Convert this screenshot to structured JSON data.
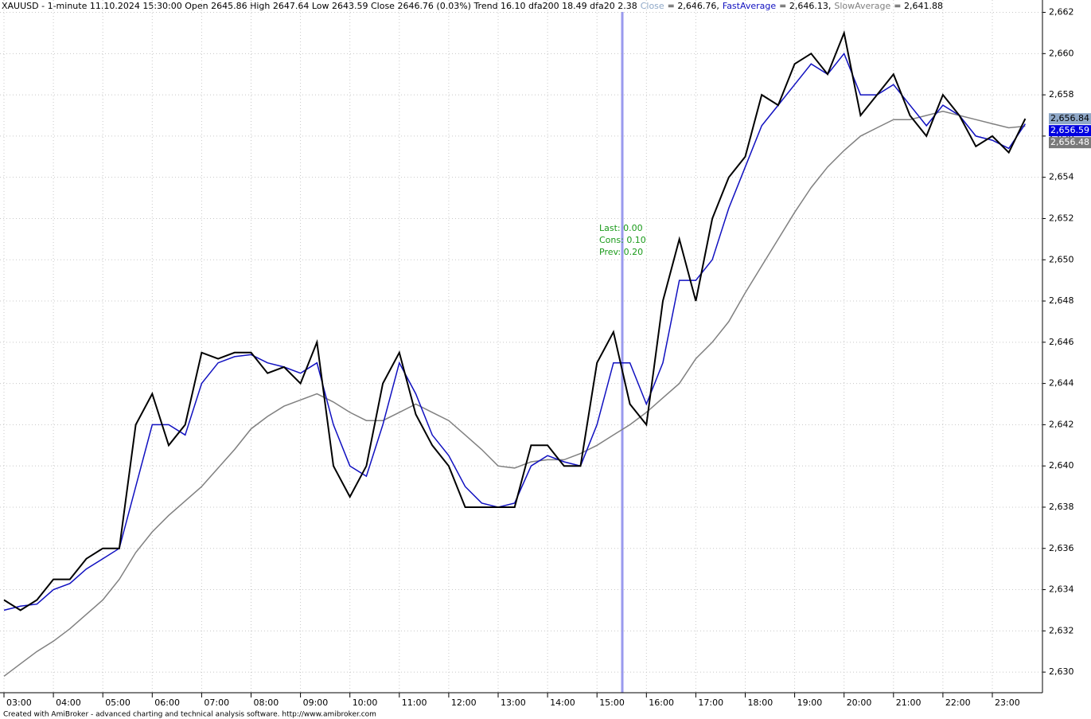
{
  "chart_data": {
    "type": "line",
    "title": "XAUUSD - 1-minute 11.10.2024 15:30:00 Open 2645.86 High 2647.64 Low 2643.59 Close 2646.76 (0.03%) Trend 16.10 dfa200 18.49 dfa20 2.38",
    "footer": "Created with AmiBroker - advanced charting and technical analysis software. http://www.amibroker.com",
    "annotations": [
      "Last: 0.00",
      "Cons: 0.10",
      "Prev: 0.20"
    ],
    "categories": [
      "03:00",
      null,
      null,
      "04:00",
      null,
      null,
      "05:00",
      null,
      null,
      "06:00",
      null,
      null,
      "07:00",
      null,
      null,
      "08:00",
      null,
      null,
      "09:00",
      null,
      null,
      "10:00",
      null,
      null,
      "11:00",
      null,
      null,
      "12:00",
      null,
      null,
      "13:00",
      null,
      null,
      "14:00",
      null,
      null,
      "15:00",
      null,
      null,
      "16:00",
      null,
      null,
      "17:00",
      null,
      null,
      "18:00",
      null,
      null,
      "19:00",
      null,
      null,
      "20:00",
      null,
      null,
      "21:00",
      null,
      null,
      "22:00",
      null,
      null,
      "23:00",
      null,
      null
    ],
    "series": [
      {
        "name": "Close",
        "legend_value": "= 2,646.76,",
        "color": "#000000",
        "label_color": "#8fa8c8",
        "label_text_color": "#000000",
        "values": [
          2633.5,
          2633,
          2633.5,
          2634.5,
          2634.5,
          2635.5,
          2636,
          2636,
          2642,
          2643.5,
          2641,
          2642,
          2645.5,
          2645.2,
          2645.5,
          2645.5,
          2644.5,
          2644.8,
          2644,
          2646,
          2640,
          2638.5,
          2640,
          2644,
          2645.5,
          2642.5,
          2641,
          2640,
          2638,
          2638,
          2638,
          2638,
          2641,
          2641,
          2640,
          2640,
          2645,
          2646.5,
          2643,
          2642,
          2648,
          2651,
          2648,
          2652,
          2654,
          2655,
          2658,
          2657.5,
          2659.5,
          2660,
          2659,
          2661,
          2657,
          2658,
          2659,
          2657,
          2656,
          2658,
          2657,
          2655.5,
          2656,
          2655.2,
          2656.84
        ],
        "value_labels": [
          null,
          null,
          null,
          null,
          null,
          null,
          null,
          null,
          null,
          null,
          null,
          null,
          null,
          null,
          null,
          null,
          null,
          null,
          null,
          null,
          null,
          null,
          null,
          null,
          null,
          null,
          null,
          null,
          null,
          null,
          null,
          null,
          null,
          null,
          null,
          null,
          null,
          null,
          null,
          null,
          null,
          null,
          null,
          null,
          null,
          null,
          null,
          null,
          null,
          null,
          null,
          null,
          null,
          null,
          null,
          null,
          null,
          null,
          null,
          null,
          null,
          null,
          "2,656.84"
        ]
      },
      {
        "name": "FastAverage",
        "legend_value": "= 2,646.13,",
        "color": "#1010c0",
        "label_color": "#0000e0",
        "label_text_color": "#ffffff",
        "values": [
          2633,
          2633.2,
          2633.3,
          2634,
          2634.3,
          2635,
          2635.5,
          2636,
          2639,
          2642,
          2642,
          2641.5,
          2644,
          2645,
          2645.3,
          2645.4,
          2645,
          2644.8,
          2644.5,
          2645,
          2642,
          2640,
          2639.5,
          2642,
          2645,
          2643.5,
          2641.5,
          2640.5,
          2639,
          2638.2,
          2638,
          2638.2,
          2640,
          2640.5,
          2640.2,
          2640,
          2642,
          2645,
          2645,
          2643,
          2645,
          2649,
          2649,
          2650,
          2652.5,
          2654.5,
          2656.5,
          2657.5,
          2658.5,
          2659.5,
          2659,
          2660,
          2658,
          2658,
          2658.5,
          2657.5,
          2656.5,
          2657.5,
          2657,
          2656,
          2655.8,
          2655.4,
          2656.59
        ],
        "value_labels": [
          null,
          null,
          null,
          null,
          null,
          null,
          null,
          null,
          null,
          null,
          null,
          null,
          null,
          null,
          null,
          null,
          null,
          null,
          null,
          null,
          null,
          null,
          null,
          null,
          null,
          null,
          null,
          null,
          null,
          null,
          null,
          null,
          null,
          null,
          null,
          null,
          null,
          null,
          null,
          null,
          null,
          null,
          null,
          null,
          null,
          null,
          null,
          null,
          null,
          null,
          null,
          null,
          null,
          null,
          null,
          null,
          null,
          null,
          null,
          null,
          null,
          null,
          "2,656.59"
        ]
      },
      {
        "name": "SlowAverage",
        "legend_value": "= 2,641.88",
        "color": "#808080",
        "label_color": "#7a7a7a",
        "label_text_color": "#ffffff",
        "values": [
          2629.8,
          2630.4,
          2631,
          2631.5,
          2632.1,
          2632.8,
          2633.5,
          2634.5,
          2635.8,
          2636.8,
          2637.6,
          2638.3,
          2639,
          2639.9,
          2640.8,
          2641.8,
          2642.4,
          2642.9,
          2643.2,
          2643.5,
          2643.1,
          2642.6,
          2642.2,
          2642.2,
          2642.6,
          2643,
          2642.6,
          2642.2,
          2641.5,
          2640.8,
          2640,
          2639.9,
          2640.2,
          2640.3,
          2640.3,
          2640.6,
          2641,
          2641.5,
          2642,
          2642.6,
          2643.3,
          2644,
          2645.2,
          2646,
          2647,
          2648.4,
          2649.7,
          2651,
          2652.3,
          2653.5,
          2654.5,
          2655.3,
          2656,
          2656.4,
          2656.8,
          2656.8,
          2657,
          2657.2,
          2657,
          2656.8,
          2656.6,
          2656.4,
          2656.48
        ],
        "value_labels": [
          null,
          null,
          null,
          null,
          null,
          null,
          null,
          null,
          null,
          null,
          null,
          null,
          null,
          null,
          null,
          null,
          null,
          null,
          null,
          null,
          null,
          null,
          null,
          null,
          null,
          null,
          null,
          null,
          null,
          null,
          null,
          null,
          null,
          null,
          null,
          null,
          null,
          null,
          null,
          null,
          null,
          null,
          null,
          null,
          null,
          null,
          null,
          null,
          null,
          null,
          null,
          null,
          null,
          null,
          null,
          null,
          null,
          null,
          null,
          null,
          null,
          null,
          "2,656.48"
        ]
      }
    ],
    "ylim": [
      2629,
      2662.6
    ],
    "yticks": [
      {
        "value": 2630,
        "label": "2,630"
      },
      {
        "value": 2632,
        "label": "2,632"
      },
      {
        "value": 2634,
        "label": "2,634"
      },
      {
        "value": 2636,
        "label": "2,636"
      },
      {
        "value": 2638,
        "label": "2,638"
      },
      {
        "value": 2640,
        "label": "2,640"
      },
      {
        "value": 2642,
        "label": "2,642"
      },
      {
        "value": 2644,
        "label": "2,644"
      },
      {
        "value": 2646,
        "label": "2,646"
      },
      {
        "value": 2648,
        "label": "2,648"
      },
      {
        "value": 2650,
        "label": "2,650"
      },
      {
        "value": 2652,
        "label": "2,652"
      },
      {
        "value": 2654,
        "label": "2,654"
      },
      {
        "value": 2656,
        "label": "2,656"
      },
      {
        "value": 2658,
        "label": "2,658"
      },
      {
        "value": 2660,
        "label": "2,660"
      },
      {
        "value": 2662,
        "label": "2,662"
      }
    ],
    "grid": true
  }
}
